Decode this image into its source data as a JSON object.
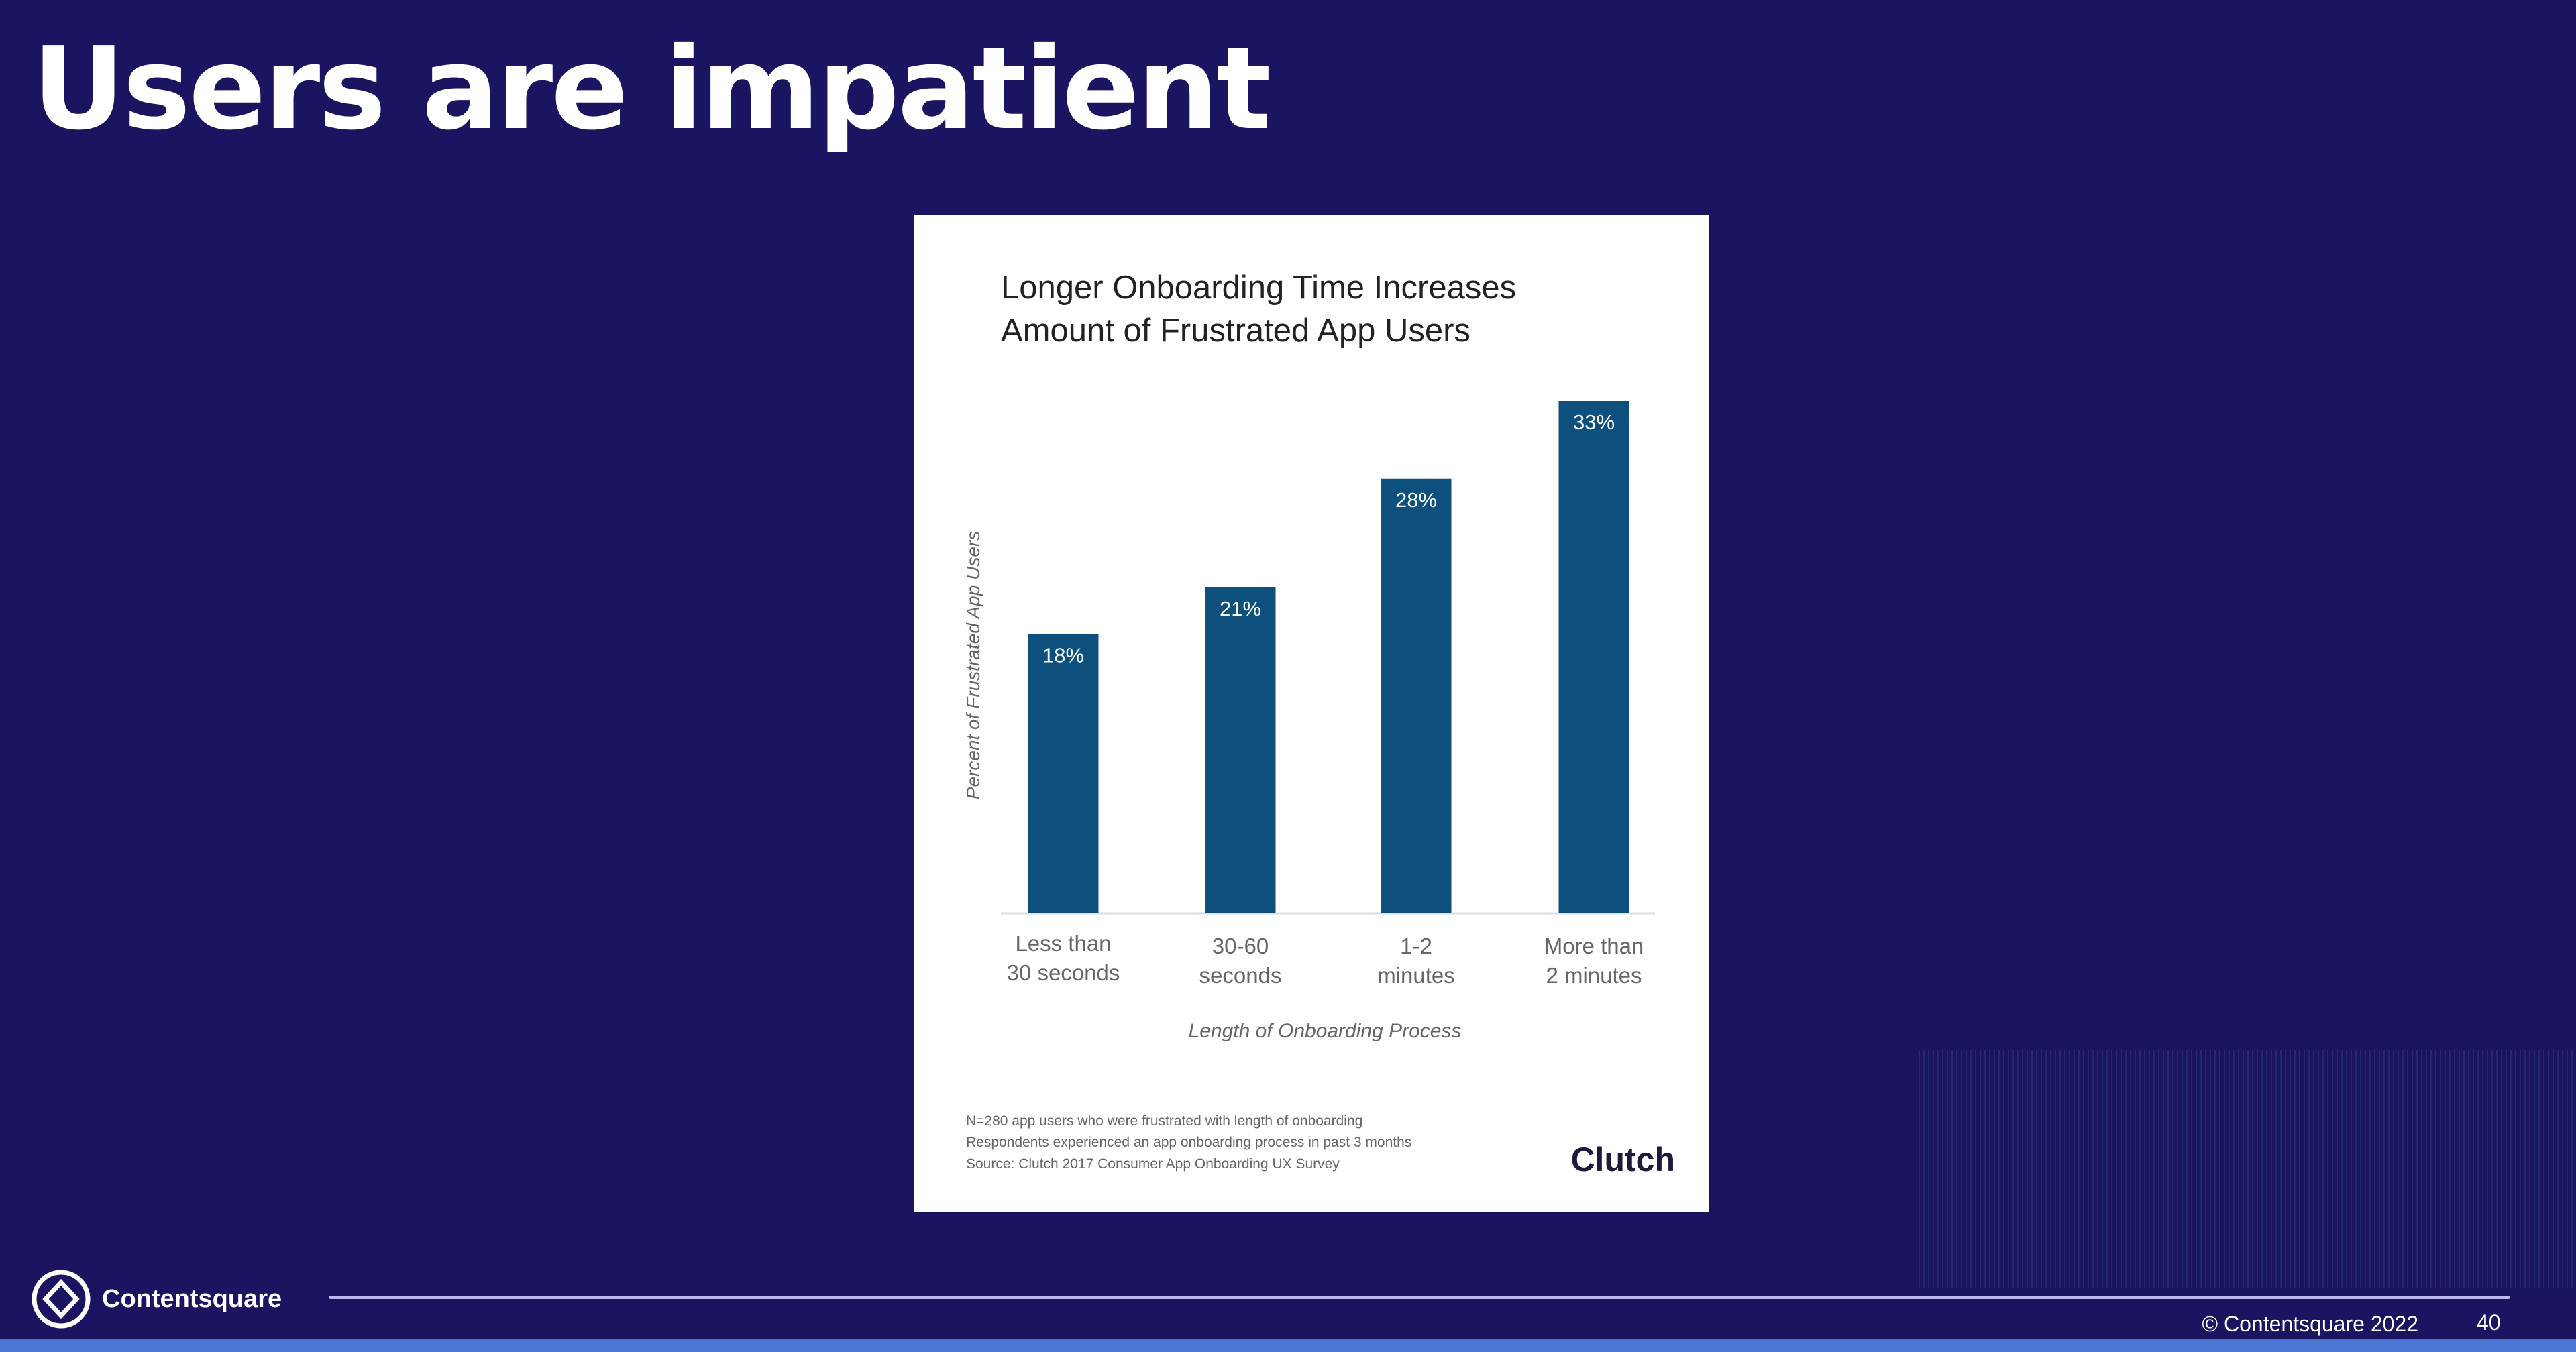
{
  "slide": {
    "title": "Users are impatient",
    "page_number": "40"
  },
  "footer": {
    "brand": "Contentsquare",
    "copyright": "© Contentsquare 2022",
    "logo_icon": "contentsquare-logo-icon"
  },
  "colors": {
    "background": "#1b1461",
    "bar": "#0d4f7d",
    "strip": "#4a78d4",
    "rule": "#b9b6f0"
  },
  "chart_data": {
    "type": "bar",
    "title_lines": [
      "Longer Onboarding Time Increases",
      "Amount of Frustrated App Users"
    ],
    "categories": [
      [
        "Less than",
        "30 seconds"
      ],
      [
        "30-60",
        "seconds"
      ],
      [
        "1-2",
        "minutes"
      ],
      [
        "More than",
        "2 minutes"
      ]
    ],
    "values": [
      18,
      21,
      28,
      33
    ],
    "data_labels": [
      "18%",
      "21%",
      "28%",
      "33%"
    ],
    "xlabel": "Length of Onboarding Process",
    "ylabel": "Percent of Frustrated App Users",
    "ylim": [
      0,
      33
    ],
    "grid": false,
    "notes": [
      "N=280 app users who were frustrated with length of onboarding",
      "Respondents experienced an app onboarding process in past 3 months",
      "Source: Clutch 2017 Consumer App Onboarding UX Survey"
    ],
    "source_logo": "Clutch"
  }
}
